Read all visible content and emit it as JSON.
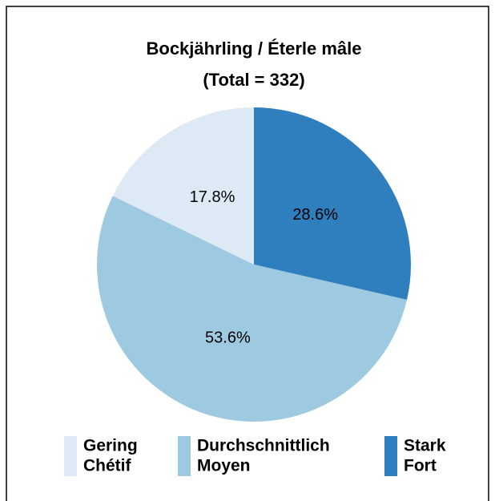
{
  "chart_data": {
    "type": "pie",
    "title": "Bockjährling / Éterle mâle",
    "subtitle": "(Total = 332)",
    "categories": [
      "Stark",
      "Durchschnittlich",
      "Gering"
    ],
    "categories_fr": [
      "Fort",
      "Moyen",
      "Chétif"
    ],
    "values": [
      28.6,
      53.6,
      17.8
    ],
    "value_labels": [
      "28.6%",
      "53.6%",
      "17.8%"
    ],
    "colors": [
      "#2f7fbe",
      "#9ecae1",
      "#dde9f5"
    ],
    "legend": "bottom"
  }
}
